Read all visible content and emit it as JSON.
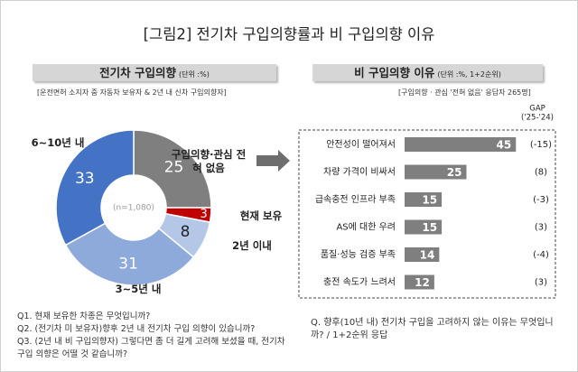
{
  "title": "[그림2] 전기차 구입의향률과 비 구입의향 이유",
  "chart_data": [
    {
      "type": "donut",
      "title": "전기차 구입의향",
      "unit": "(단위 :%)",
      "note": "[운전면허 소지자 중 자동차 보유자 & 2년 내 신차 구입의향자]",
      "center_label": "(n=1,080)",
      "categories": [
        "구입의향·관심 전혀 없음",
        "현재 보유",
        "2년 이내",
        "3~5년 내",
        "6~10년 내"
      ],
      "values": [
        25,
        3,
        8,
        31,
        33
      ],
      "colors": [
        "#7f7f7f",
        "#c00000",
        "#b4c7e7",
        "#8eaadb",
        "#4472c4"
      ],
      "questions": [
        "Q1. 현재 보유한 차종은 무엇입니까?",
        "Q2. (전기차 미 보유자)향후 2년 내 전기차 구입 의향이 있습니까?",
        "Q3. (2년 내 비 구입의향자) 그렇다면 좀 더 길게 고려해 보셨을 때, 전기차 구입 의향은 어떨 것 같습니까?"
      ]
    },
    {
      "type": "bar",
      "orientation": "horizontal",
      "title": "비 구입의향 이유",
      "unit": "(단위 :%, 1+2순위)",
      "note": "[구입의향 · 관심 '전혀 없음' 응답자 265명]",
      "categories": [
        "안전성이 떨어져서",
        "차량 가격이 비싸서",
        "급속충전 인프라 부족",
        "AS에 대한 우려",
        "품질·성능 검증 부족",
        "충전 속도가 느려서"
      ],
      "values": [
        45,
        25,
        15,
        15,
        14,
        12
      ],
      "color": "#7f7f7f",
      "xlim": [
        0,
        46
      ],
      "gap": {
        "title": "GAP",
        "subtitle": "('25-'24)",
        "values": [
          -15,
          8,
          -3,
          3,
          -4,
          3
        ],
        "value_labels": [
          "(-15)",
          "(8)",
          "(-3)",
          "(3)",
          "(-4)",
          "(3)"
        ]
      },
      "question": "Q. 향후(10년 내) 전기차 구입을 고려하지 않는 이유는 무엇입니까? / 1+2순위 응답"
    }
  ]
}
